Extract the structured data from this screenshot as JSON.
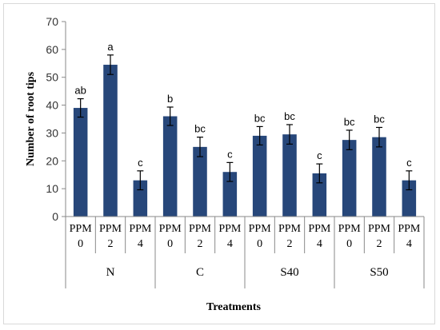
{
  "chart_data": {
    "type": "bar",
    "ylabel": "Number of root tips",
    "xlabel": "Treatments",
    "ylim": [
      0,
      70
    ],
    "yticks": [
      0,
      10,
      20,
      30,
      40,
      50,
      60,
      70
    ],
    "grid": false,
    "legend": "none",
    "bar_color": "#27477a",
    "groups": [
      {
        "name": "N",
        "categories": [
          [
            "PPM",
            "0"
          ],
          [
            "PPM",
            "2"
          ],
          [
            "PPM",
            "4"
          ]
        ]
      },
      {
        "name": "C",
        "categories": [
          [
            "PPM",
            "0"
          ],
          [
            "PPM",
            "2"
          ],
          [
            "PPM",
            "4"
          ]
        ]
      },
      {
        "name": "S40",
        "categories": [
          [
            "PPM",
            "0"
          ],
          [
            "PPM",
            "2"
          ],
          [
            "PPM",
            "4"
          ]
        ]
      },
      {
        "name": "S50",
        "categories": [
          [
            "PPM",
            "0"
          ],
          [
            "PPM",
            "2"
          ],
          [
            "PPM",
            "4"
          ]
        ]
      }
    ],
    "values": [
      39,
      54.5,
      13,
      36,
      25,
      16,
      29,
      29.5,
      15.5,
      27.5,
      28.5,
      13
    ],
    "errors": [
      3.3,
      3.5,
      3.4,
      3.3,
      3.5,
      3.4,
      3.3,
      3.5,
      3.4,
      3.5,
      3.5,
      3.4
    ],
    "significance": [
      "ab",
      "a",
      "c",
      "b",
      "bc",
      "c",
      "bc",
      "bc",
      "c",
      "bc",
      "bc",
      "c"
    ]
  }
}
